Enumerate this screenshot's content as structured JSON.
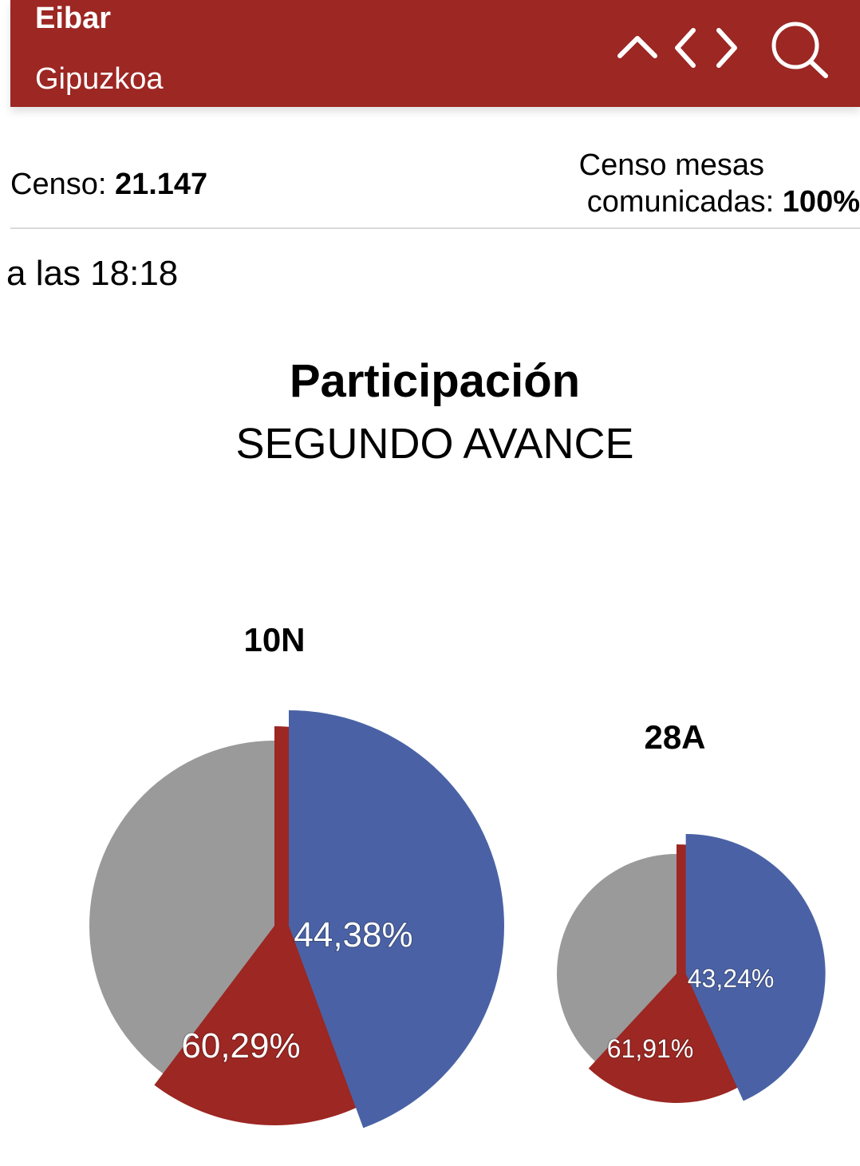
{
  "header": {
    "place": "Eibar",
    "region": "Gipuzkoa",
    "icons": [
      "chevron-up-icon",
      "chevron-left-icon",
      "chevron-right-icon",
      "search-icon"
    ]
  },
  "stats": {
    "censo_label": "Censo:",
    "censo_value": "21.147",
    "mesas_label_line1": "Censo mesas",
    "mesas_label_line2": "comunicadas:",
    "mesas_value": "100%"
  },
  "time_text": "a las 18:18",
  "title": "Participación",
  "subtitle": "SEGUNDO AVANCE",
  "colors": {
    "header": "#9c2723",
    "current": "#4a62a5",
    "previous": "#9c2723",
    "rest": "#9a9a9a"
  },
  "chart_data": [
    {
      "type": "pie",
      "label": "10N",
      "values": [
        {
          "name": "current",
          "value": 44.38,
          "text": "44,38%"
        },
        {
          "name": "previous",
          "value": 60.29,
          "text": "60,29%"
        }
      ]
    },
    {
      "type": "pie",
      "label": "28A",
      "values": [
        {
          "name": "current",
          "value": 43.24,
          "text": "43,24%"
        },
        {
          "name": "previous",
          "value": 61.91,
          "text": "61,91%"
        }
      ]
    }
  ]
}
